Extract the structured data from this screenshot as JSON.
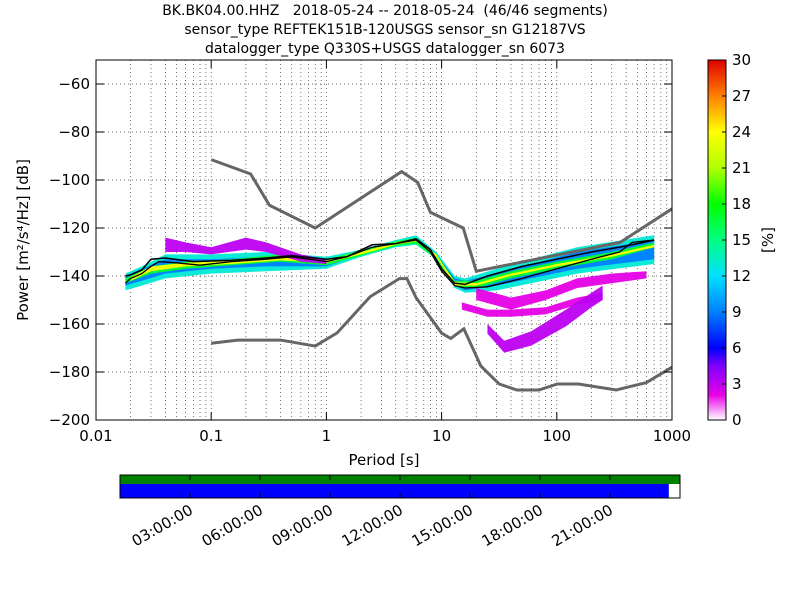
{
  "title_lines": [
    "BK.BK04.00.HHZ   2018-05-24 -- 2018-05-24  (46/46 segments)",
    "sensor_type REFTEK151B-120USGS sensor_sn G12187VS",
    "datalogger_type Q330S+USGS datalogger_sn 6073"
  ],
  "colorbar": {
    "label": "[%]",
    "ticks": [
      "0",
      "3",
      "6",
      "9",
      "12",
      "15",
      "18",
      "21",
      "24",
      "27",
      "30"
    ],
    "min": 0,
    "max": 30
  },
  "chart_data": {
    "type": "heatmap",
    "xlabel": "Period [s]",
    "ylabel": "Power [m²/s⁴/Hz] [dB]",
    "xscale": "log",
    "xlim": [
      0.01,
      1000
    ],
    "ylim": [
      -200,
      -50
    ],
    "xticks": [
      {
        "v": 0.01,
        "label": "0.01"
      },
      {
        "v": 0.1,
        "label": "0.1"
      },
      {
        "v": 1,
        "label": "1"
      },
      {
        "v": 10,
        "label": "10"
      },
      {
        "v": 100,
        "label": "100"
      },
      {
        "v": 1000,
        "label": "1000"
      }
    ],
    "yticks": [
      {
        "v": -60,
        "label": "−60"
      },
      {
        "v": -80,
        "label": "−80"
      },
      {
        "v": -100,
        "label": "−100"
      },
      {
        "v": -120,
        "label": "−120"
      },
      {
        "v": -140,
        "label": "−140"
      },
      {
        "v": -160,
        "label": "−160"
      },
      {
        "v": -180,
        "label": "−180"
      },
      {
        "v": -200,
        "label": "−200"
      }
    ],
    "grid": "dotted",
    "noise_model_high": [
      [
        0.1,
        -91.5
      ],
      [
        0.22,
        -97.5
      ],
      [
        0.32,
        -110.5
      ],
      [
        0.8,
        -120
      ],
      [
        4.5,
        -96.5
      ],
      [
        6.2,
        -101
      ],
      [
        8,
        -113.5
      ],
      [
        15.4,
        -120
      ],
      [
        20,
        -138
      ],
      [
        354.8,
        -126
      ],
      [
        1000,
        -112
      ]
    ],
    "noise_model_low": [
      [
        0.1,
        -168
      ],
      [
        0.17,
        -166.7
      ],
      [
        0.4,
        -166.7
      ],
      [
        0.8,
        -169.2
      ],
      [
        1.24,
        -163.7
      ],
      [
        2.4,
        -148.6
      ],
      [
        4.3,
        -141.1
      ],
      [
        5,
        -141.1
      ],
      [
        6,
        -149
      ],
      [
        10,
        -163.8
      ],
      [
        12,
        -166
      ],
      [
        15.6,
        -162
      ],
      [
        21.9,
        -177.5
      ],
      [
        31.6,
        -185
      ],
      [
        45,
        -187.5
      ],
      [
        70,
        -187.5
      ],
      [
        101,
        -185
      ],
      [
        154,
        -185
      ],
      [
        328,
        -187.5
      ],
      [
        600,
        -184.4
      ],
      [
        1000,
        -178
      ]
    ],
    "mean_psd": [
      [
        0.018,
        -143
      ],
      [
        0.02,
        -141
      ],
      [
        0.025,
        -139
      ],
      [
        0.03,
        -136
      ],
      [
        0.035,
        -134
      ],
      [
        0.05,
        -134.5
      ],
      [
        0.08,
        -135.5
      ],
      [
        0.15,
        -134
      ],
      [
        0.3,
        -133
      ],
      [
        0.5,
        -132
      ],
      [
        1,
        -134
      ],
      [
        1.5,
        -132
      ],
      [
        2.5,
        -128
      ],
      [
        4,
        -126.5
      ],
      [
        6,
        -125
      ],
      [
        8,
        -130
      ],
      [
        10,
        -138
      ],
      [
        13,
        -144
      ],
      [
        16,
        -145
      ],
      [
        25,
        -144.5
      ],
      [
        50,
        -141
      ],
      [
        100,
        -137
      ],
      [
        200,
        -133
      ],
      [
        350,
        -130
      ],
      [
        450,
        -126
      ],
      [
        700,
        -125
      ]
    ],
    "mode_psd": [
      [
        0.018,
        -140
      ],
      [
        0.02,
        -139.5
      ],
      [
        0.025,
        -137.5
      ],
      [
        0.03,
        -133
      ],
      [
        0.04,
        -132.5
      ],
      [
        0.07,
        -134
      ],
      [
        0.15,
        -133.5
      ],
      [
        0.3,
        -132.5
      ],
      [
        0.5,
        -131.5
      ],
      [
        1,
        -133
      ],
      [
        1.5,
        -132
      ],
      [
        2.5,
        -127
      ],
      [
        4,
        -126.5
      ],
      [
        6,
        -124.5
      ],
      [
        8,
        -129
      ],
      [
        10,
        -137
      ],
      [
        13,
        -143
      ],
      [
        16,
        -143.5
      ],
      [
        25,
        -140
      ],
      [
        50,
        -136
      ],
      [
        100,
        -133
      ],
      [
        200,
        -130
      ],
      [
        400,
        -127.5
      ],
      [
        700,
        -125
      ]
    ],
    "density_bands": [
      {
        "pct": 13,
        "upper": [
          [
            0.018,
            -139
          ],
          [
            0.025,
            -136
          ],
          [
            0.04,
            -131
          ],
          [
            0.1,
            -131
          ],
          [
            0.3,
            -130
          ],
          [
            1,
            -132
          ],
          [
            2,
            -129
          ],
          [
            4,
            -125
          ],
          [
            6,
            -123
          ],
          [
            9,
            -130
          ],
          [
            13,
            -140
          ],
          [
            16,
            -141
          ],
          [
            30,
            -137
          ],
          [
            60,
            -133
          ],
          [
            150,
            -128
          ],
          [
            700,
            -123
          ]
        ],
        "lower": [
          [
            0.018,
            -146
          ],
          [
            0.025,
            -144
          ],
          [
            0.04,
            -141
          ],
          [
            0.1,
            -139
          ],
          [
            0.3,
            -138
          ],
          [
            1,
            -137
          ],
          [
            2,
            -132
          ],
          [
            4,
            -128
          ],
          [
            6,
            -127
          ],
          [
            9,
            -133
          ],
          [
            13,
            -145
          ],
          [
            16,
            -147
          ],
          [
            30,
            -146
          ],
          [
            60,
            -143
          ],
          [
            150,
            -139
          ],
          [
            700,
            -135
          ]
        ]
      },
      {
        "pct": 9,
        "upper": [
          [
            0.018,
            -140
          ],
          [
            0.025,
            -137
          ],
          [
            0.04,
            -133
          ],
          [
            0.1,
            -133
          ],
          [
            0.3,
            -132
          ],
          [
            1,
            -133
          ],
          [
            2,
            -130
          ],
          [
            4,
            -126
          ],
          [
            6,
            -124
          ],
          [
            9,
            -131
          ],
          [
            13,
            -141
          ],
          [
            16,
            -142
          ],
          [
            30,
            -139
          ],
          [
            60,
            -135
          ],
          [
            150,
            -130
          ],
          [
            700,
            -125
          ]
        ],
        "lower": [
          [
            0.018,
            -144
          ],
          [
            0.025,
            -142
          ],
          [
            0.04,
            -139
          ],
          [
            0.1,
            -137
          ],
          [
            0.3,
            -136
          ],
          [
            1,
            -136
          ],
          [
            2,
            -131
          ],
          [
            4,
            -127
          ],
          [
            6,
            -126
          ],
          [
            9,
            -132
          ],
          [
            13,
            -144
          ],
          [
            16,
            -146
          ],
          [
            30,
            -144
          ],
          [
            60,
            -141
          ],
          [
            150,
            -137
          ],
          [
            700,
            -133
          ]
        ]
      },
      {
        "pct": 17,
        "upper": [
          [
            0.018,
            -141
          ],
          [
            0.03,
            -136
          ],
          [
            0.06,
            -134
          ],
          [
            0.15,
            -133
          ],
          [
            0.4,
            -131
          ],
          [
            1,
            -133
          ],
          [
            2,
            -129.5
          ],
          [
            4,
            -125.5
          ],
          [
            6,
            -124
          ],
          [
            9,
            -131
          ],
          [
            13,
            -142
          ],
          [
            20,
            -142
          ],
          [
            40,
            -138
          ],
          [
            100,
            -134
          ],
          [
            300,
            -130
          ],
          [
            700,
            -126
          ]
        ],
        "lower": [
          [
            0.018,
            -143
          ],
          [
            0.03,
            -139
          ],
          [
            0.06,
            -137
          ],
          [
            0.15,
            -135.5
          ],
          [
            0.4,
            -134
          ],
          [
            1,
            -135.5
          ],
          [
            2,
            -131.5
          ],
          [
            4,
            -127.5
          ],
          [
            6,
            -126.5
          ],
          [
            9,
            -133
          ],
          [
            13,
            -144.5
          ],
          [
            20,
            -145
          ],
          [
            40,
            -141
          ],
          [
            100,
            -137
          ],
          [
            300,
            -133
          ],
          [
            700,
            -128
          ]
        ]
      },
      {
        "pct": 24,
        "upper": [
          [
            0.02,
            -140.5
          ],
          [
            0.03,
            -136
          ],
          [
            0.06,
            -134.5
          ],
          [
            0.15,
            -133.5
          ],
          [
            0.4,
            -132
          ],
          [
            1,
            -133.5
          ],
          [
            2,
            -130
          ],
          [
            4,
            -126
          ],
          [
            6,
            -124.5
          ],
          [
            9,
            -131
          ],
          [
            13,
            -142.5
          ],
          [
            20,
            -143
          ],
          [
            40,
            -139
          ],
          [
            100,
            -135
          ],
          [
            300,
            -131
          ],
          [
            700,
            -127
          ]
        ],
        "lower": [
          [
            0.02,
            -142
          ],
          [
            0.03,
            -138
          ],
          [
            0.06,
            -136
          ],
          [
            0.15,
            -135
          ],
          [
            0.4,
            -133.5
          ],
          [
            1,
            -134.5
          ],
          [
            2,
            -131
          ],
          [
            4,
            -127
          ],
          [
            6,
            -125.5
          ],
          [
            9,
            -132
          ],
          [
            13,
            -144
          ],
          [
            20,
            -144
          ],
          [
            40,
            -140
          ],
          [
            100,
            -136
          ],
          [
            300,
            -132
          ],
          [
            700,
            -128
          ]
        ]
      },
      {
        "pct": 3,
        "upper": [
          [
            0.04,
            -124
          ],
          [
            0.06,
            -126
          ],
          [
            0.1,
            -128
          ],
          [
            0.2,
            -124
          ],
          [
            0.3,
            -126
          ],
          [
            0.6,
            -131
          ],
          [
            1,
            -133
          ]
        ],
        "lower": [
          [
            0.04,
            -130
          ],
          [
            0.06,
            -130
          ],
          [
            0.1,
            -131
          ],
          [
            0.2,
            -129
          ],
          [
            0.3,
            -130
          ],
          [
            0.6,
            -134
          ],
          [
            1,
            -135
          ]
        ]
      },
      {
        "pct": 2,
        "upper": [
          [
            20,
            -145
          ],
          [
            40,
            -149
          ],
          [
            80,
            -146
          ],
          [
            150,
            -141
          ],
          [
            300,
            -139
          ],
          [
            600,
            -138
          ]
        ],
        "lower": [
          [
            20,
            -150
          ],
          [
            40,
            -154
          ],
          [
            80,
            -150
          ],
          [
            150,
            -145
          ],
          [
            300,
            -143
          ],
          [
            600,
            -141
          ]
        ]
      },
      {
        "pct": 2,
        "upper": [
          [
            15,
            -151
          ],
          [
            25,
            -154
          ],
          [
            40,
            -154
          ],
          [
            80,
            -153
          ],
          [
            150,
            -149
          ],
          [
            250,
            -147
          ]
        ],
        "lower": [
          [
            15,
            -154
          ],
          [
            25,
            -157
          ],
          [
            40,
            -157
          ],
          [
            80,
            -156
          ],
          [
            150,
            -152
          ],
          [
            250,
            -150
          ]
        ]
      },
      {
        "pct": 3,
        "upper": [
          [
            25,
            -160
          ],
          [
            35,
            -167
          ],
          [
            60,
            -163
          ],
          [
            120,
            -154
          ],
          [
            200,
            -147
          ],
          [
            250,
            -144
          ]
        ],
        "lower": [
          [
            25,
            -164
          ],
          [
            35,
            -172
          ],
          [
            60,
            -169
          ],
          [
            120,
            -161
          ],
          [
            200,
            -153
          ],
          [
            250,
            -150
          ]
        ]
      }
    ]
  },
  "time_axis": {
    "labels": [
      "03:00:00",
      "06:00:00",
      "09:00:00",
      "12:00:00",
      "15:00:00",
      "18:00:00",
      "21:00:00"
    ],
    "coverage_fraction_green": 1.0,
    "coverage_fraction_blue": 0.98
  }
}
